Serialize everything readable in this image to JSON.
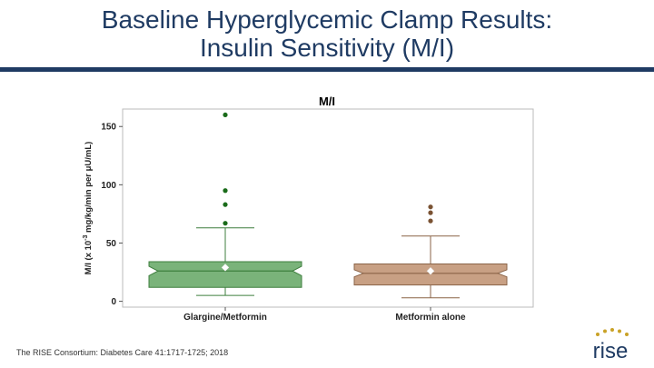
{
  "slide": {
    "title_line1": "Baseline Hyperglycemic Clamp Results:",
    "title_line2": "Insulin Sensitivity (M/I)",
    "citation": "The RISE Consortium: Diabetes Care 41:1717-1725; 2018",
    "logo_text": "rise",
    "colors": {
      "title": "#1f3b63",
      "accent": "#1f3b63",
      "logo_dots": "#c9a227"
    }
  },
  "chart_data": {
    "type": "box",
    "title": "M/I",
    "ylabel_pre": "M/I (x 10",
    "ylabel_sup": "-3",
    "ylabel_post": " mg/kg/min per μU/mL)",
    "ylim": [
      -5,
      165
    ],
    "yticks": [
      0,
      50,
      100,
      150
    ],
    "grid": false,
    "categories": [
      "Glargine/Metformin",
      "Metformin alone"
    ],
    "groups": [
      {
        "category": "Glargine/Metformin",
        "whisker_low": 5,
        "q1": 12,
        "notch_low": 22,
        "median": 26,
        "notch_high": 30,
        "q3": 34,
        "whisker_high": 63,
        "mean": 29,
        "outliers": [
          67,
          83,
          95,
          160
        ],
        "fill": "#7ab37a",
        "stroke": "#3f7f3f",
        "outlier_color": "#1a6b1a"
      },
      {
        "category": "Metformin alone",
        "whisker_low": 3,
        "q1": 14,
        "notch_low": 21,
        "median": 24,
        "notch_high": 27,
        "q3": 32,
        "whisker_high": 56,
        "mean": 26,
        "outliers": [
          69,
          76,
          81
        ],
        "fill": "#c8a084",
        "stroke": "#8a6347",
        "outlier_color": "#7a5233"
      }
    ]
  }
}
